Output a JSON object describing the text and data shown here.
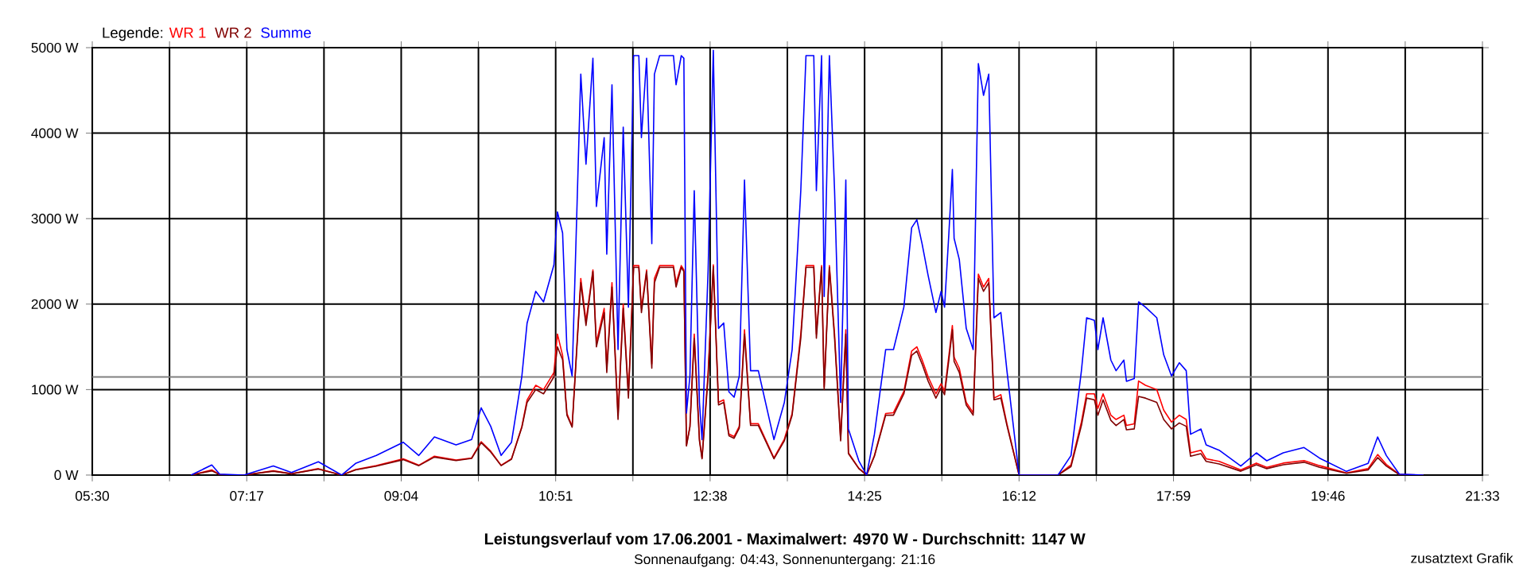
{
  "chart_data": {
    "type": "line",
    "title": "Leistungsverlauf vom 17.06.2001 - Maximalwert: 4970 W - Durchschnitt: 1147 W",
    "subtitle": "Sonnenaufgang: 04:43, Sonnenuntergang: 21:16",
    "annotations": [
      "zusatztext Grafik"
    ],
    "legend_title": "Legende:",
    "grid": true,
    "xlim": [
      5.5,
      21.55
    ],
    "ylim": [
      0,
      5000
    ],
    "xticks": [
      {
        "value": 5.5,
        "label": "05:30"
      },
      {
        "value": 6.3917,
        "label": null
      },
      {
        "value": 7.2833,
        "label": "07:17"
      },
      {
        "value": 8.175,
        "label": null
      },
      {
        "value": 9.0667,
        "label": "09:04"
      },
      {
        "value": 9.9583,
        "label": null
      },
      {
        "value": 10.85,
        "label": "10:51"
      },
      {
        "value": 11.7417,
        "label": null
      },
      {
        "value": 12.6333,
        "label": "12:38"
      },
      {
        "value": 13.525,
        "label": null
      },
      {
        "value": 14.4167,
        "label": "14:25"
      },
      {
        "value": 15.3083,
        "label": null
      },
      {
        "value": 16.2,
        "label": "16:12"
      },
      {
        "value": 17.0917,
        "label": null
      },
      {
        "value": 17.9833,
        "label": "17:59"
      },
      {
        "value": 18.875,
        "label": null
      },
      {
        "value": 19.7667,
        "label": "19:46"
      },
      {
        "value": 20.6583,
        "label": null
      },
      {
        "value": 21.55,
        "label": "21:33"
      }
    ],
    "yticks": [
      {
        "value": 0,
        "label": "0 W"
      },
      {
        "value": 1000,
        "label": "1000 W"
      },
      {
        "value": 2000,
        "label": "2000 W"
      },
      {
        "value": 3000,
        "label": "3000 W"
      },
      {
        "value": 4000,
        "label": "4000 W"
      },
      {
        "value": 5000,
        "label": "5000 W"
      }
    ],
    "ref_lines": [
      {
        "axis": "y",
        "value": 1147,
        "color": "#808080"
      }
    ],
    "x": [
      6.64,
      6.88,
      6.97,
      7.25,
      7.59,
      7.8,
      8.11,
      8.38,
      8.54,
      8.78,
      9.09,
      9.27,
      9.45,
      9.7,
      9.88,
      9.99,
      10.1,
      10.22,
      10.34,
      10.46,
      10.52,
      10.62,
      10.71,
      10.83,
      10.87,
      10.93,
      10.98,
      11.04,
      11.14,
      11.2,
      11.28,
      11.32,
      11.41,
      11.44,
      11.5,
      11.57,
      11.63,
      11.69,
      11.75,
      11.81,
      11.84,
      11.9,
      11.96,
      11.99,
      12.05,
      12.21,
      12.24,
      12.3,
      12.33,
      12.36,
      12.4,
      12.45,
      12.51,
      12.54,
      12.61,
      12.67,
      12.73,
      12.79,
      12.85,
      12.91,
      12.97,
      13.03,
      13.1,
      13.19,
      13.37,
      13.49,
      13.58,
      13.68,
      13.74,
      13.83,
      13.86,
      13.92,
      13.95,
      14.01,
      14.07,
      14.14,
      14.2,
      14.23,
      14.35,
      14.44,
      14.53,
      14.66,
      14.75,
      14.87,
      14.96,
      15.02,
      15.08,
      15.15,
      15.24,
      15.3,
      15.34,
      15.39,
      15.43,
      15.45,
      15.51,
      15.59,
      15.67,
      15.73,
      15.79,
      15.85,
      15.91,
      15.99,
      16.06,
      16.2,
      16.65,
      16.8,
      16.92,
      16.98,
      17.07,
      17.11,
      17.17,
      17.26,
      17.32,
      17.41,
      17.44,
      17.53,
      17.58,
      17.66,
      17.79,
      17.87,
      17.96,
      18.05,
      18.13,
      18.18,
      18.3,
      18.36,
      18.51,
      18.76,
      18.94,
      19.06,
      19.25,
      19.49,
      19.67,
      19.98,
      20.23,
      20.34,
      20.44,
      20.59,
      20.87
    ],
    "series": [
      {
        "name": "WR 1",
        "color": "#ff0000",
        "values": [
          0,
          60,
          5,
          0,
          50,
          15,
          75,
          0,
          65,
          110,
          190,
          115,
          220,
          175,
          200,
          390,
          280,
          115,
          190,
          570,
          880,
          1050,
          1000,
          1200,
          1650,
          1400,
          720,
          570,
          2300,
          1800,
          2400,
          1550,
          1950,
          1250,
          2250,
          700,
          2000,
          950,
          2450,
          2450,
          1950,
          2400,
          1300,
          2300,
          2450,
          2450,
          2250,
          2450,
          2400,
          350,
          570,
          1650,
          420,
          200,
          1200,
          2460,
          850,
          880,
          480,
          450,
          570,
          1700,
          600,
          600,
          200,
          420,
          720,
          1650,
          2450,
          2450,
          1650,
          2450,
          1030,
          2450,
          1650,
          420,
          1700,
          260,
          80,
          0,
          230,
          720,
          730,
          980,
          1450,
          1500,
          1350,
          1150,
          950,
          1070,
          980,
          1400,
          1750,
          1380,
          1250,
          850,
          730,
          2350,
          2200,
          2300,
          900,
          940,
          600,
          0,
          0,
          120,
          620,
          950,
          950,
          780,
          950,
          700,
          650,
          700,
          580,
          600,
          1100,
          1050,
          1000,
          760,
          620,
          700,
          650,
          260,
          290,
          190,
          160,
          60,
          140,
          90,
          140,
          170,
          110,
          25,
          75,
          240,
          125,
          7,
          0
        ]
      },
      {
        "name": "WR 2",
        "color": "#800000",
        "values": [
          0,
          50,
          5,
          0,
          45,
          15,
          70,
          0,
          60,
          105,
          180,
          110,
          210,
          170,
          195,
          380,
          270,
          110,
          185,
          560,
          850,
          1000,
          950,
          1150,
          1500,
          1350,
          700,
          560,
          2250,
          1750,
          2380,
          1500,
          1900,
          1200,
          2200,
          650,
          1950,
          900,
          2430,
          2430,
          1900,
          2380,
          1250,
          2250,
          2430,
          2430,
          2200,
          2430,
          2380,
          340,
          560,
          1600,
          400,
          190,
          1150,
          2440,
          820,
          850,
          460,
          430,
          550,
          1650,
          580,
          580,
          190,
          400,
          700,
          1600,
          2430,
          2430,
          1600,
          2430,
          1000,
          2430,
          1600,
          400,
          1650,
          250,
          75,
          0,
          220,
          700,
          700,
          950,
          1400,
          1450,
          1300,
          1100,
          900,
          1020,
          940,
          1350,
          1700,
          1330,
          1200,
          820,
          700,
          2300,
          2150,
          2250,
          880,
          900,
          580,
          0,
          0,
          100,
          580,
          900,
          880,
          700,
          880,
          640,
          580,
          650,
          530,
          540,
          920,
          900,
          850,
          650,
          540,
          610,
          570,
          220,
          250,
          160,
          130,
          45,
          120,
          75,
          120,
          150,
          90,
          20,
          60,
          205,
          105,
          5,
          0
        ]
      },
      {
        "name": "Summe",
        "color": "#0000ff",
        "values": [
          0,
          118,
          12,
          0,
          106,
          31,
          155,
          0,
          136,
          229,
          384,
          229,
          446,
          353,
          415,
          787,
          570,
          229,
          384,
          1159,
          1778,
          2150,
          2026,
          2460,
          3079,
          2832,
          1468,
          1159,
          4690,
          3637,
          4876,
          3141,
          3947,
          2584,
          4566,
          1468,
          4071,
          1964,
          4907,
          4907,
          3947,
          4876,
          2708,
          4690,
          4907,
          4907,
          4566,
          4907,
          4876,
          725,
          1159,
          3327,
          849,
          415,
          2398,
          4969,
          1716,
          1778,
          973,
          911,
          1159,
          3451,
          1221,
          1221,
          415,
          849,
          1468,
          3327,
          4907,
          4907,
          3327,
          4907,
          2088,
          4907,
          3327,
          849,
          3451,
          539,
          167,
          0,
          477,
          1468,
          1468,
          1964,
          2894,
          2987,
          2708,
          2336,
          1902,
          2150,
          1964,
          2832,
          3575,
          2770,
          2522,
          1716,
          1468,
          4814,
          4442,
          4690,
          1840,
          1902,
          1221,
          0,
          0,
          229,
          1221,
          1840,
          1809,
          1468,
          1840,
          1345,
          1221,
          1345,
          1097,
          1128,
          2026,
          1964,
          1840,
          1407,
          1159,
          1314,
          1221,
          477,
          539,
          353,
          291,
          105,
          260,
          167,
          260,
          322,
          198,
          43,
          136,
          446,
          229,
          12,
          0
        ]
      }
    ]
  }
}
